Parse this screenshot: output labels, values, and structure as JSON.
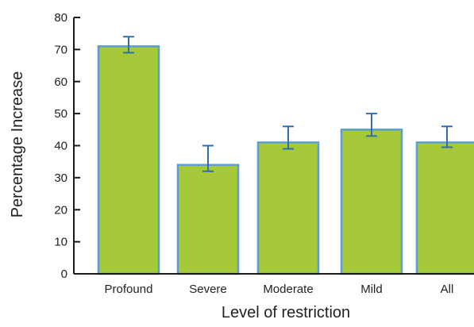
{
  "chart_data": {
    "type": "bar",
    "title": "",
    "xlabel": "Level of restriction",
    "ylabel": "Percentage Increase",
    "categories": [
      "Profound",
      "Severe",
      "Moderate",
      "Mild",
      "All"
    ],
    "values": [
      71,
      34,
      41,
      45,
      41
    ],
    "error_low": [
      69,
      32,
      39,
      43,
      39.5
    ],
    "error_high": [
      74,
      40,
      46,
      50,
      46
    ],
    "ylim": [
      0,
      80
    ],
    "yticks": [
      "0",
      "10",
      "20",
      "30",
      "40",
      "50",
      "60",
      "70",
      "80"
    ],
    "grid": false,
    "legend": "none",
    "colors": {
      "bar_fill": "#a6c93a",
      "bar_edge": "#5a9fd0",
      "error_bar": "#2f6fb0",
      "axis": "#1a1a1a"
    }
  }
}
